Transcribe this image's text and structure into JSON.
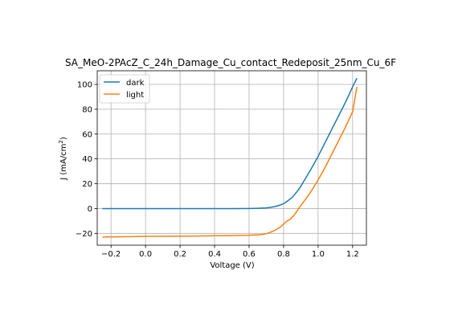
{
  "chart_data": {
    "type": "line",
    "title": "SA_MeO-2PAcZ_C_24h_Damage_Cu_contact_Redeposit_25nm_Cu_6F",
    "xlabel": "Voltage (V)",
    "ylabel_main": "J (mA/cm",
    "ylabel_sup": "2",
    "ylabel_close": ")",
    "xlim": [
      -0.28,
      1.28
    ],
    "ylim": [
      -29.5,
      111
    ],
    "xticks": [
      -0.2,
      0.0,
      0.2,
      0.4,
      0.6,
      0.8,
      1.0,
      1.2
    ],
    "xtick_labels": [
      "−0.2",
      "0.0",
      "0.2",
      "0.4",
      "0.6",
      "0.8",
      "1.0",
      "1.2"
    ],
    "yticks": [
      -20,
      0,
      20,
      40,
      60,
      80,
      100
    ],
    "ytick_labels": [
      "−20",
      "0",
      "20",
      "40",
      "60",
      "80",
      "100"
    ],
    "grid": true,
    "legend_position": "top-left",
    "series": [
      {
        "name": "dark",
        "color": "#1f77b4",
        "x": [
          -0.25,
          -0.2,
          -0.1,
          0.0,
          0.1,
          0.2,
          0.3,
          0.4,
          0.5,
          0.6,
          0.65,
          0.7,
          0.72,
          0.75,
          0.78,
          0.8,
          0.82,
          0.85,
          0.88,
          0.9,
          0.93,
          0.96,
          1.0,
          1.04,
          1.08,
          1.12,
          1.16,
          1.2,
          1.225
        ],
        "y": [
          0,
          0,
          0,
          0,
          0,
          0,
          0,
          0,
          0,
          0.05,
          0.2,
          0.5,
          0.9,
          1.6,
          2.8,
          4.0,
          5.8,
          9.0,
          14.0,
          18.0,
          25.0,
          32.0,
          42.0,
          53.0,
          64.0,
          75.0,
          86.0,
          98.0,
          105.0
        ]
      },
      {
        "name": "light",
        "color": "#ff7f0e",
        "x": [
          -0.25,
          -0.2,
          -0.1,
          0.0,
          0.1,
          0.2,
          0.3,
          0.4,
          0.5,
          0.6,
          0.65,
          0.68,
          0.7,
          0.72,
          0.75,
          0.78,
          0.8,
          0.82,
          0.84,
          0.86,
          0.88,
          0.9,
          0.93,
          0.96,
          1.0,
          1.04,
          1.08,
          1.12,
          1.16,
          1.2,
          1.225
        ],
        "y": [
          -23.0,
          -22.8,
          -22.6,
          -22.4,
          -22.3,
          -22.2,
          -22.1,
          -21.9,
          -21.7,
          -21.5,
          -21.2,
          -20.8,
          -20.2,
          -19.3,
          -17.5,
          -15.0,
          -12.5,
          -10.0,
          -8.5,
          -5.5,
          -1.5,
          2.5,
          8.0,
          14.0,
          23.0,
          33.0,
          44.0,
          55.0,
          66.0,
          78.0,
          98.0
        ]
      }
    ]
  }
}
